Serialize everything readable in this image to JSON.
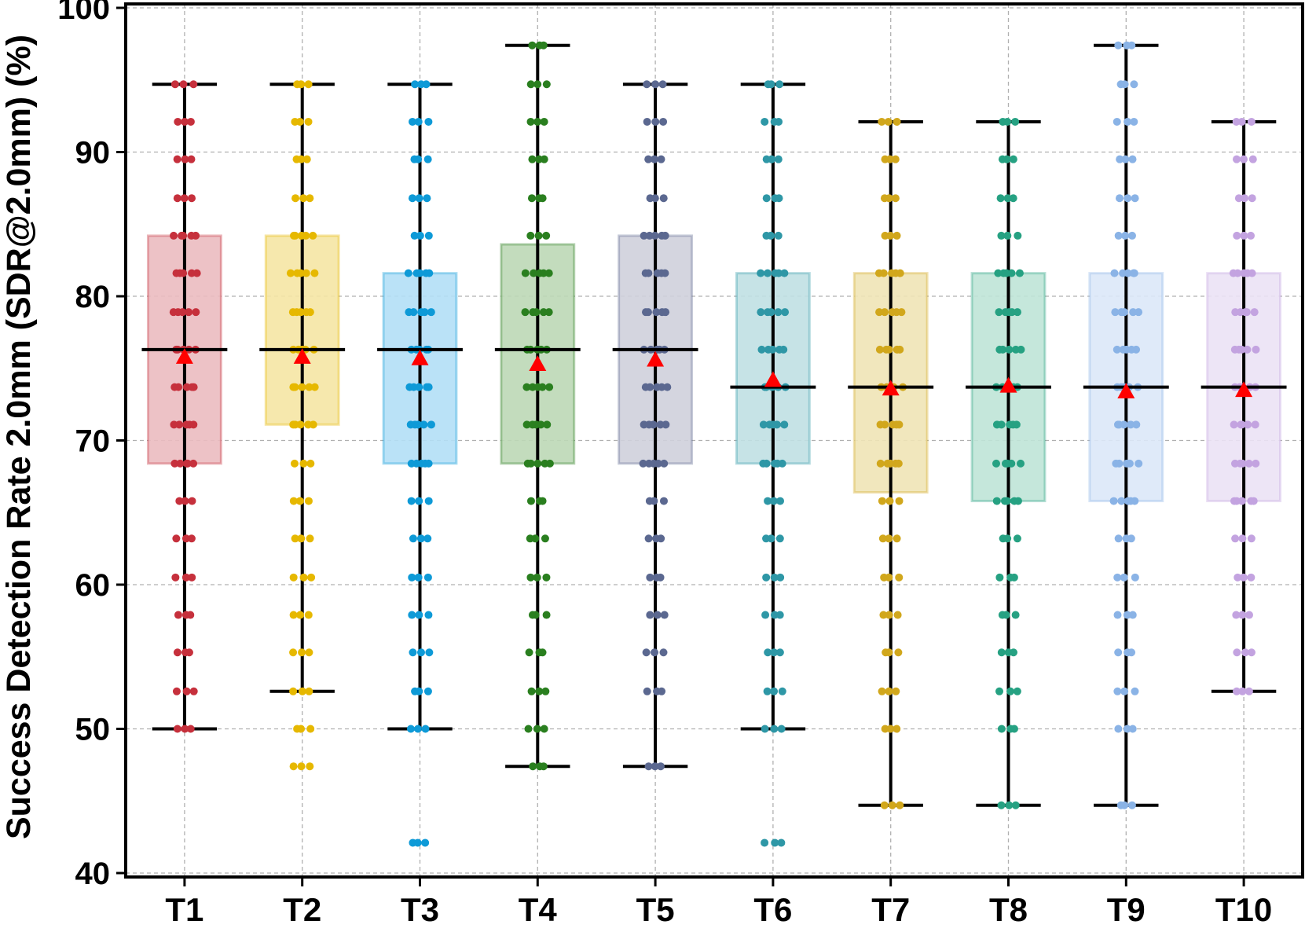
{
  "chart_data": {
    "type": "box",
    "ylabel": "Success Detection Rate 2.0mm (SDR@2.0mm) (%)",
    "xlabel": "",
    "ylim": [
      40,
      100
    ],
    "yticks": [
      40,
      50,
      60,
      70,
      80,
      90,
      100
    ],
    "grid": true,
    "categories": [
      "T1",
      "T2",
      "T3",
      "T4",
      "T5",
      "T6",
      "T7",
      "T8",
      "T9",
      "T10"
    ],
    "colors": [
      "#c6303c",
      "#e6b800",
      "#0e9ad7",
      "#2a7f1f",
      "#5b6890",
      "#2e97a6",
      "#d1a71c",
      "#26a182",
      "#8ab3e6",
      "#c3a3e0"
    ],
    "box_fill_colors": [
      "#ebbbc0",
      "#f5e5a4",
      "#b3dff6",
      "#bcd8b6",
      "#cfd0dc",
      "#c0e0e3",
      "#f0e4b6",
      "#bfe4d7",
      "#dbe8f8",
      "#ebe2f5"
    ],
    "series": [
      {
        "name": "T1",
        "q1": 68.4,
        "median": 76.3,
        "q3": 84.2,
        "mean": 75.8,
        "whisker_low": 50.0,
        "whisker_high": 94.7,
        "points": [
          94.7,
          92.1,
          89.5,
          86.8,
          84.2,
          81.6,
          78.9,
          76.3,
          73.7,
          71.1,
          68.4,
          65.8,
          63.2,
          60.5,
          57.9,
          55.3,
          52.6,
          50.0
        ]
      },
      {
        "name": "T2",
        "q1": 71.1,
        "median": 76.3,
        "q3": 84.2,
        "mean": 75.8,
        "whisker_low": 52.6,
        "whisker_high": 94.7,
        "points": [
          94.7,
          92.1,
          89.5,
          86.8,
          84.2,
          81.6,
          78.9,
          76.3,
          73.7,
          71.1,
          68.4,
          65.8,
          63.2,
          60.5,
          57.9,
          55.3,
          52.6,
          50.0,
          47.4
        ]
      },
      {
        "name": "T3",
        "q1": 68.4,
        "median": 76.3,
        "q3": 81.6,
        "mean": 75.7,
        "whisker_low": 50.0,
        "whisker_high": 94.7,
        "points": [
          94.7,
          92.1,
          89.5,
          86.8,
          84.2,
          81.6,
          78.9,
          76.3,
          73.7,
          71.1,
          68.4,
          65.8,
          63.2,
          60.5,
          57.9,
          55.3,
          52.6,
          50.0,
          42.1
        ]
      },
      {
        "name": "T4",
        "q1": 68.4,
        "median": 76.3,
        "q3": 83.6,
        "mean": 75.3,
        "whisker_low": 47.4,
        "whisker_high": 97.4,
        "points": [
          97.4,
          94.7,
          92.1,
          89.5,
          86.8,
          84.2,
          81.6,
          78.9,
          76.3,
          73.7,
          71.1,
          68.4,
          65.8,
          63.2,
          60.5,
          57.9,
          55.3,
          52.6,
          50.0,
          47.4
        ]
      },
      {
        "name": "T5",
        "q1": 68.4,
        "median": 76.3,
        "q3": 84.2,
        "mean": 75.6,
        "whisker_low": 47.4,
        "whisker_high": 94.7,
        "points": [
          94.7,
          92.1,
          89.5,
          86.8,
          84.2,
          81.6,
          78.9,
          76.3,
          73.7,
          71.1,
          68.4,
          65.8,
          63.2,
          60.5,
          57.9,
          55.3,
          52.6,
          47.4
        ]
      },
      {
        "name": "T6",
        "q1": 68.4,
        "median": 73.7,
        "q3": 81.6,
        "mean": 74.2,
        "whisker_low": 50.0,
        "whisker_high": 94.7,
        "points": [
          94.7,
          92.1,
          89.5,
          86.8,
          84.2,
          81.6,
          78.9,
          76.3,
          73.7,
          71.1,
          68.4,
          65.8,
          63.2,
          60.5,
          57.9,
          55.3,
          52.6,
          50.0,
          42.1
        ]
      },
      {
        "name": "T7",
        "q1": 66.4,
        "median": 73.7,
        "q3": 81.6,
        "mean": 73.6,
        "whisker_low": 44.7,
        "whisker_high": 92.1,
        "points": [
          92.1,
          89.5,
          86.8,
          84.2,
          81.6,
          78.9,
          76.3,
          73.7,
          71.1,
          68.4,
          65.8,
          63.2,
          60.5,
          57.9,
          55.3,
          52.6,
          50.0,
          44.7
        ]
      },
      {
        "name": "T8",
        "q1": 65.8,
        "median": 73.7,
        "q3": 81.6,
        "mean": 73.8,
        "whisker_low": 44.7,
        "whisker_high": 92.1,
        "points": [
          92.1,
          89.5,
          86.8,
          84.2,
          81.6,
          78.9,
          76.3,
          73.7,
          71.1,
          68.4,
          65.8,
          63.2,
          60.5,
          57.9,
          55.3,
          52.6,
          50.0,
          44.7
        ]
      },
      {
        "name": "T9",
        "q1": 65.8,
        "median": 73.7,
        "q3": 81.6,
        "mean": 73.4,
        "whisker_low": 44.7,
        "whisker_high": 97.4,
        "points": [
          97.4,
          94.7,
          92.1,
          89.5,
          86.8,
          84.2,
          81.6,
          78.9,
          76.3,
          73.7,
          71.1,
          68.4,
          65.8,
          63.2,
          60.5,
          57.9,
          55.3,
          52.6,
          50.0,
          44.7
        ]
      },
      {
        "name": "T10",
        "q1": 65.8,
        "median": 73.7,
        "q3": 81.6,
        "mean": 73.5,
        "whisker_low": 52.6,
        "whisker_high": 92.1,
        "points": [
          92.1,
          89.5,
          86.8,
          84.2,
          81.6,
          78.9,
          76.3,
          73.7,
          71.1,
          68.4,
          65.8,
          63.2,
          60.5,
          57.9,
          55.3,
          52.6
        ]
      }
    ],
    "mean_marker_color": "#ff0000"
  }
}
